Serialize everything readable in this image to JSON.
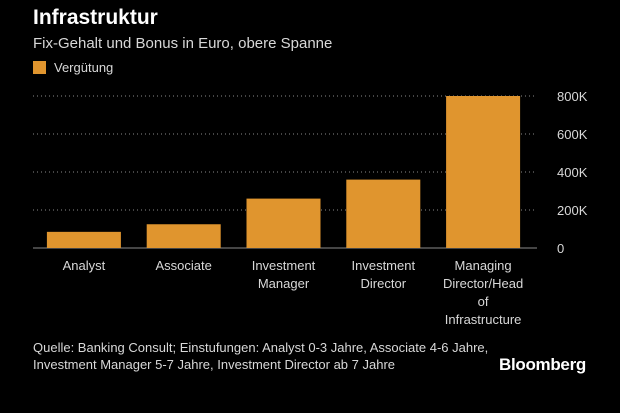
{
  "chart_data": {
    "type": "bar",
    "title": "Infrastruktur",
    "subtitle": "Fix-Gehalt und Bonus in Euro, obere Spanne",
    "categories": [
      [
        "Analyst"
      ],
      [
        "Associate"
      ],
      [
        "Investment",
        "Manager"
      ],
      [
        "Investment",
        "Director"
      ],
      [
        "Managing",
        "Director/Head",
        "of",
        "Infrastructure"
      ]
    ],
    "series": [
      {
        "name": "Vergütung",
        "values": [
          85000,
          125000,
          260000,
          360000,
          800000
        ]
      }
    ],
    "ylim": [
      0,
      800000
    ],
    "yticks": [
      0,
      200000,
      400000,
      600000,
      800000
    ],
    "ytick_labels": [
      "0",
      "200K",
      "400K",
      "600K",
      "800K"
    ],
    "grid": true,
    "legend": "top-left",
    "colors": {
      "bar": "#e0952e",
      "grid": "#8a8a8a",
      "background": "#000000"
    }
  },
  "footnote": "Quelle: Banking Consult; Einstufungen: Analyst 0-3 Jahre, Associate 4-6 Jahre, Investment Manager 5-7 Jahre, Investment Director ab 7 Jahre",
  "brand": "Bloomberg"
}
